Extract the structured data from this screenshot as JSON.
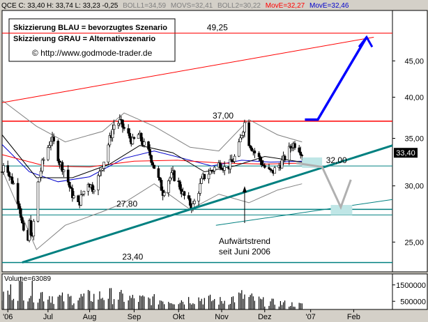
{
  "chart_data": {
    "type": "candlestick",
    "header": {
      "quote": "QCE C: 33,40 H: 33,74 L: 33,23 -0,25",
      "boll1": "BOLL1=34,59",
      "movs": "MOVS=32,41",
      "boll2": "BOLL2=30,22",
      "move1": "MovE=32,27",
      "move2": "MovE=32,46",
      "colors": {
        "quote": "#000000",
        "boll": "#808080",
        "move1": "#ff0000",
        "move2": "#0000cc"
      }
    },
    "annotations": [
      "Skizzierung BLAU = bevorzugtes Szenario",
      "Skizzierung GRAU = Alternativszenario",
      "© http://www.godmode-trader.de"
    ],
    "level_labels": [
      {
        "text": "49,25",
        "value": 49.25,
        "x": "2006-10-29"
      },
      {
        "text": "37,00",
        "value": 37.0,
        "x": "2006-11-02"
      },
      {
        "text": "32,00",
        "value": 32.0,
        "x": "2007-01-20"
      },
      {
        "text": "27,80",
        "value": 27.8,
        "x": "2006-08-27"
      },
      {
        "text": "23,40",
        "value": 23.4,
        "x": "2006-08-31"
      }
    ],
    "horizontal_lines": [
      {
        "value": 49.25,
        "color": "#ff0000",
        "width": 1
      },
      {
        "value": 37.0,
        "color": "#ff0000",
        "width": 1.5
      },
      {
        "value": 32.0,
        "color": "#008080",
        "width": 1
      },
      {
        "value": 27.8,
        "color": "#008080",
        "width": 1.5
      },
      {
        "value": 27.3,
        "color": "#008080",
        "width": 1
      },
      {
        "value": 23.4,
        "color": "#008080",
        "width": 1.5
      }
    ],
    "trend_lines": [
      {
        "from": [
          "2006-06-15",
          23.4
        ],
        "to": [
          "2007-02-28",
          34.2
        ],
        "color": "#008080",
        "width": 3
      },
      {
        "from": [
          "2006-06-01",
          39.3
        ],
        "to": [
          "2007-02-15",
          48.6
        ],
        "color": "#ff0000",
        "width": 1
      },
      {
        "from": [
          "2006-10-28",
          26.4
        ],
        "to": [
          "2007-02-28",
          28.7
        ],
        "color": "#008080",
        "width": 1
      }
    ],
    "trend_label": [
      "Aufwärtstrend",
      "seit Juni 2006"
    ],
    "scenario_blue": [
      [
        "2006-12-29",
        37.2
      ],
      [
        "2007-01-07",
        37.2
      ],
      [
        "2007-02-10",
        48.6
      ]
    ],
    "scenario_grey": [
      [
        "2006-12-23",
        32.3
      ],
      [
        "2007-01-10",
        31.9
      ],
      [
        "2007-01-23",
        28.0
      ],
      [
        "2007-01-30",
        30.6
      ]
    ],
    "close_marker": {
      "text": "33,40",
      "value": 33.4
    },
    "x_ticks": [
      "'06",
      "Jul",
      "Aug",
      "Sep",
      "Okt",
      "Nov",
      "Dez",
      "'07",
      "Feb"
    ],
    "y_ticks": [
      "45,00",
      "40,00",
      "35,00",
      "30,00",
      "25,00"
    ],
    "y_tick_values": [
      45,
      40,
      35,
      30,
      25
    ],
    "y_scale": "log",
    "ylim": [
      22.7,
      53.0
    ],
    "xlim": [
      "2006-06-01",
      "2007-02-28"
    ],
    "price_path": [
      [
        "2006-06-01",
        31.4
      ],
      [
        "2006-06-03",
        33.2
      ],
      [
        "2006-06-06",
        31.0
      ],
      [
        "2006-06-09",
        30.2
      ],
      [
        "2006-06-13",
        28.2
      ],
      [
        "2006-06-16",
        25.6
      ],
      [
        "2006-06-18",
        23.6
      ],
      [
        "2006-06-20",
        26.6
      ],
      [
        "2006-06-22",
        25.2
      ],
      [
        "2006-06-25",
        29.6
      ],
      [
        "2006-06-29",
        32.2
      ],
      [
        "2006-07-02",
        33.6
      ],
      [
        "2006-07-05",
        34.9
      ],
      [
        "2006-07-08",
        34.2
      ],
      [
        "2006-07-11",
        32.4
      ],
      [
        "2006-07-15",
        31.4
      ],
      [
        "2006-07-19",
        29.4
      ],
      [
        "2006-07-24",
        28.2
      ],
      [
        "2006-07-27",
        29.2
      ],
      [
        "2006-07-31",
        30.4
      ],
      [
        "2006-08-03",
        29.8
      ],
      [
        "2006-08-07",
        30.8
      ],
      [
        "2006-08-11",
        32.6
      ],
      [
        "2006-08-15",
        34.9
      ],
      [
        "2006-08-18",
        36.6
      ],
      [
        "2006-08-22",
        36.9
      ],
      [
        "2006-08-26",
        35.8
      ],
      [
        "2006-08-31",
        34.6
      ],
      [
        "2006-09-04",
        35.4
      ],
      [
        "2006-09-08",
        34.2
      ],
      [
        "2006-09-12",
        33.2
      ],
      [
        "2006-09-15",
        31.9
      ],
      [
        "2006-09-18",
        30.6
      ],
      [
        "2006-09-21",
        29.4
      ],
      [
        "2006-09-24",
        30.5
      ],
      [
        "2006-09-28",
        31.1
      ],
      [
        "2006-10-02",
        30.2
      ],
      [
        "2006-10-05",
        29.2
      ],
      [
        "2006-10-09",
        28.4
      ],
      [
        "2006-10-12",
        28.1
      ],
      [
        "2006-10-16",
        29.6
      ],
      [
        "2006-10-19",
        30.8
      ],
      [
        "2006-10-23",
        31.3
      ],
      [
        "2006-10-27",
        31.8
      ],
      [
        "2006-10-31",
        32.3
      ],
      [
        "2006-11-04",
        31.6
      ],
      [
        "2006-11-08",
        32.4
      ],
      [
        "2006-11-12",
        33.4
      ],
      [
        "2006-11-15",
        35.6
      ],
      [
        "2006-11-17",
        36.8
      ],
      [
        "2006-11-20",
        34.6
      ],
      [
        "2006-11-24",
        33.4
      ],
      [
        "2006-11-28",
        32.6
      ],
      [
        "2006-12-02",
        31.6
      ],
      [
        "2006-12-06",
        31.3
      ],
      [
        "2006-12-10",
        31.9
      ],
      [
        "2006-12-14",
        32.6
      ],
      [
        "2006-12-17",
        33.4
      ],
      [
        "2006-12-20",
        34.3
      ],
      [
        "2006-12-23",
        34.4
      ],
      [
        "2006-12-27",
        33.4
      ]
    ],
    "overlays": [
      {
        "name": "MovE=32,46",
        "color": "#0000cc",
        "points": [
          [
            "2006-06-01",
            34.3
          ],
          [
            "2006-06-20",
            31.4
          ],
          [
            "2006-07-10",
            30.4
          ],
          [
            "2006-08-01",
            30.9
          ],
          [
            "2006-08-25",
            32.8
          ],
          [
            "2006-09-15",
            33.6
          ],
          [
            "2006-10-05",
            32.8
          ],
          [
            "2006-10-25",
            32.0
          ],
          [
            "2006-11-15",
            32.6
          ],
          [
            "2006-12-05",
            32.4
          ],
          [
            "2006-12-27",
            32.5
          ]
        ]
      },
      {
        "name": "MovE=32,27",
        "color": "#ff0000",
        "points": [
          [
            "2006-06-01",
            33.2
          ],
          [
            "2006-07-01",
            32.0
          ],
          [
            "2006-08-01",
            31.9
          ],
          [
            "2006-09-01",
            32.5
          ],
          [
            "2006-10-01",
            32.6
          ],
          [
            "2006-11-01",
            32.3
          ],
          [
            "2006-12-01",
            32.2
          ],
          [
            "2006-12-27",
            32.3
          ]
        ]
      },
      {
        "name": "MOVS=32,41",
        "color": "#000000",
        "points": [
          [
            "2006-06-01",
            35.4
          ],
          [
            "2006-06-25",
            30.8
          ],
          [
            "2006-07-20",
            30.8
          ],
          [
            "2006-08-15",
            32.2
          ],
          [
            "2006-09-05",
            34.2
          ],
          [
            "2006-09-28",
            33.4
          ],
          [
            "2006-10-20",
            31.4
          ],
          [
            "2006-11-10",
            32.0
          ],
          [
            "2006-12-01",
            33.0
          ],
          [
            "2006-12-27",
            32.4
          ]
        ]
      },
      {
        "name": "BOLL1=34,59",
        "color": "#808080",
        "points": [
          [
            "2006-06-01",
            39.6
          ],
          [
            "2006-06-25",
            36.4
          ],
          [
            "2006-07-15",
            34.6
          ],
          [
            "2006-08-10",
            35.8
          ],
          [
            "2006-08-25",
            38.0
          ],
          [
            "2006-09-15",
            36.4
          ],
          [
            "2006-10-10",
            34.0
          ],
          [
            "2006-10-30",
            33.6
          ],
          [
            "2006-11-20",
            37.2
          ],
          [
            "2006-12-10",
            35.4
          ],
          [
            "2006-12-27",
            34.6
          ]
        ]
      },
      {
        "name": "BOLL2=30,22",
        "color": "#808080",
        "points": [
          [
            "2006-06-01",
            31.6
          ],
          [
            "2006-06-25",
            24.4
          ],
          [
            "2006-07-15",
            26.4
          ],
          [
            "2006-08-10",
            27.6
          ],
          [
            "2006-08-25",
            28.4
          ],
          [
            "2006-09-15",
            30.2
          ],
          [
            "2006-10-10",
            27.8
          ],
          [
            "2006-10-30",
            29.2
          ],
          [
            "2006-11-20",
            28.4
          ],
          [
            "2006-12-10",
            29.6
          ],
          [
            "2006-12-27",
            30.2
          ]
        ]
      }
    ],
    "volume": {
      "label": "Volume=63089",
      "ticks": [
        "1500000",
        "500000"
      ],
      "tick_values": [
        1500000,
        500000
      ],
      "ymax": 2000000,
      "series": [
        [
          "2006-06-01",
          900000
        ],
        [
          "2006-06-15",
          1600000
        ],
        [
          "2006-06-20",
          1250000
        ],
        [
          "2006-07-01",
          1000000
        ],
        [
          "2006-07-15",
          700000
        ],
        [
          "2006-08-01",
          850000
        ],
        [
          "2006-08-15",
          950000
        ],
        [
          "2006-09-01",
          700000
        ],
        [
          "2006-09-15",
          650000
        ],
        [
          "2006-10-01",
          600000
        ],
        [
          "2006-10-15",
          750000
        ],
        [
          "2006-11-01",
          550000
        ],
        [
          "2006-11-15",
          900000
        ],
        [
          "2006-12-01",
          500000
        ],
        [
          "2006-12-15",
          400000
        ],
        [
          "2006-12-27",
          300000
        ]
      ]
    }
  }
}
